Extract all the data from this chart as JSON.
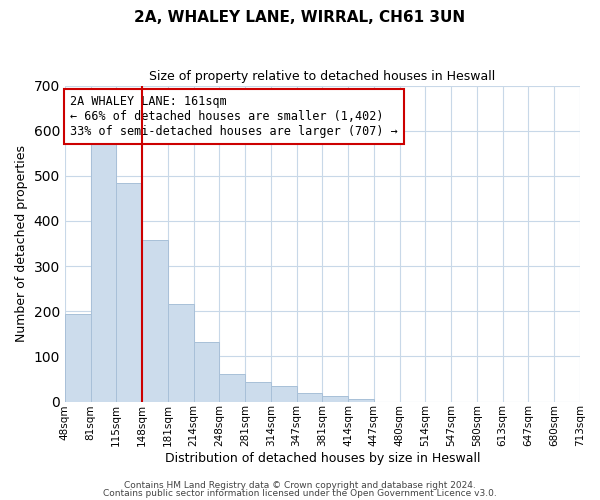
{
  "title": "2A, WHALEY LANE, WIRRAL, CH61 3UN",
  "subtitle": "Size of property relative to detached houses in Heswall",
  "xlabel": "Distribution of detached houses by size in Heswall",
  "ylabel": "Number of detached properties",
  "bar_values": [
    193,
    578,
    484,
    357,
    216,
    133,
    62,
    44,
    35,
    18,
    12,
    6,
    0,
    0,
    0,
    0,
    0,
    0,
    0,
    0
  ],
  "bar_labels": [
    "48sqm",
    "81sqm",
    "115sqm",
    "148sqm",
    "181sqm",
    "214sqm",
    "248sqm",
    "281sqm",
    "314sqm",
    "347sqm",
    "381sqm",
    "414sqm",
    "447sqm",
    "480sqm",
    "514sqm",
    "547sqm",
    "580sqm",
    "613sqm",
    "647sqm",
    "680sqm",
    "713sqm"
  ],
  "bar_color": "#ccdcec",
  "bar_edge_color": "#a8c0d8",
  "vline_position": 3.0,
  "vline_color": "#cc0000",
  "ylim": [
    0,
    700
  ],
  "yticks": [
    0,
    100,
    200,
    300,
    400,
    500,
    600,
    700
  ],
  "annotation_text": "2A WHALEY LANE: 161sqm\n← 66% of detached houses are smaller (1,402)\n33% of semi-detached houses are larger (707) →",
  "annotation_box_color": "#ffffff",
  "annotation_box_edge": "#cc0000",
  "footer1": "Contains HM Land Registry data © Crown copyright and database right 2024.",
  "footer2": "Contains public sector information licensed under the Open Government Licence v3.0.",
  "background_color": "#ffffff",
  "grid_color": "#c8d8e8",
  "title_fontsize": 11,
  "subtitle_fontsize": 9,
  "axis_label_fontsize": 9,
  "tick_fontsize": 7.5,
  "annotation_fontsize": 8.5,
  "footer_fontsize": 6.5
}
